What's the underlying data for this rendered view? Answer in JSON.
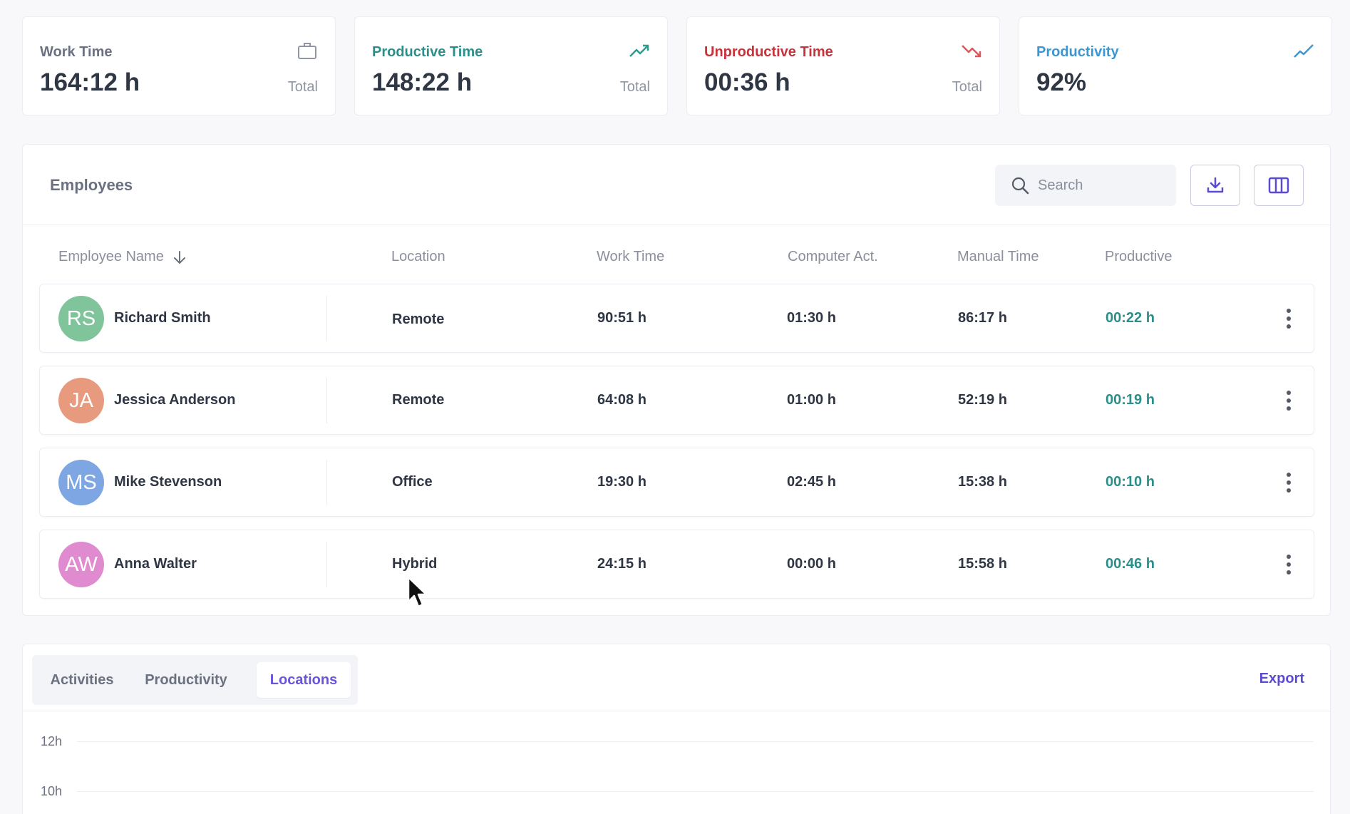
{
  "stats": [
    {
      "label": "Work Time",
      "value": "164:12 h",
      "sub": "Total",
      "color": "#6b7180",
      "icon": "briefcase-icon"
    },
    {
      "label": "Productive Time",
      "value": "148:22 h",
      "sub": "Total",
      "color": "#2a8f8a",
      "icon": "trend-up-icon"
    },
    {
      "label": "Unproductive Time",
      "value": "00:36 h",
      "sub": "Total",
      "color": "#c8323b",
      "icon": "trend-down-icon"
    },
    {
      "label": "Productivity",
      "value": "92%",
      "sub": "",
      "color": "#3b97d3",
      "icon": "trend-line-icon"
    }
  ],
  "employees": {
    "title": "Employees",
    "search_placeholder": "Search",
    "columns": [
      "Employee Name",
      "Location",
      "Work Time",
      "Computer Act.",
      "Manual Time",
      "Productive"
    ],
    "rows": [
      {
        "initials": "RS",
        "name": "Richard Smith",
        "location": "Remote",
        "work_time": "90:51 h",
        "computer_act": "01:30 h",
        "manual_time": "86:17 h",
        "productive": "00:22 h",
        "avatar_color": "#7fc49b"
      },
      {
        "initials": "JA",
        "name": "Jessica Anderson",
        "location": "Remote",
        "work_time": "64:08 h",
        "computer_act": "01:00 h",
        "manual_time": "52:19 h",
        "productive": "00:19 h",
        "avatar_color": "#e89a7e"
      },
      {
        "initials": "MS",
        "name": "Mike Stevenson",
        "location": "Office",
        "work_time": "19:30 h",
        "computer_act": "02:45 h",
        "manual_time": "15:38 h",
        "productive": "00:10 h",
        "avatar_color": "#7ea6e3"
      },
      {
        "initials": "AW",
        "name": "Anna Walter",
        "location": "Hybrid",
        "work_time": "24:15 h",
        "computer_act": "00:00 h",
        "manual_time": "15:58 h",
        "productive": "00:46 h",
        "avatar_color": "#e08ad0"
      }
    ]
  },
  "bottom": {
    "tabs": [
      "Activities",
      "Productivity",
      "Locations"
    ],
    "active_tab": "Locations",
    "export_label": "Export",
    "y_ticks": [
      "12h",
      "10h"
    ]
  }
}
